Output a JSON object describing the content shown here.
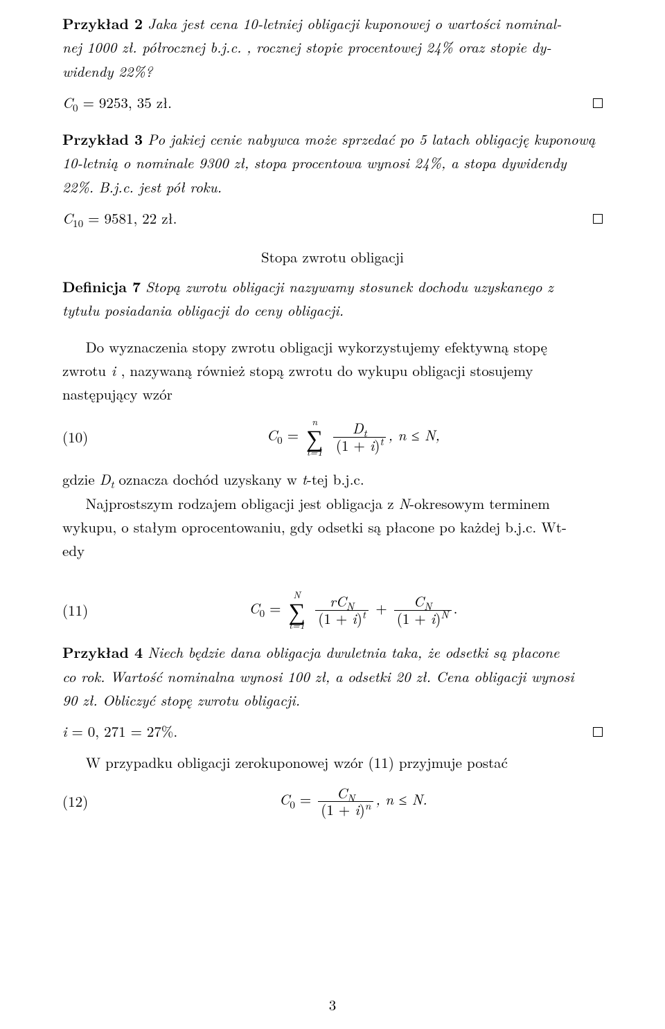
{
  "ex2": {
    "label": "Przykład 2",
    "text_a": "Jaka jest cena 10-letniej obligacji kuponowej o wartości nominal-",
    "text_b": "nej 1000 zł. półrocznej b.j.c. , rocznej stopie procentowej 24% oraz stopie dy-",
    "text_c": "widendy 22%?",
    "result": "C₀ = 9253, 35 zł."
  },
  "ex3": {
    "label": "Przykład 3",
    "text_a": "Po jakiej cenie nabywca może sprzedać po 5 latach obligację kuponową",
    "text_b": "10-letnią o nominale 9300 zł, stopa procentowa wynosi 24%, a stopa dywidendy",
    "text_c": "22%. B.j.c. jest pół roku.",
    "result": "C₁₀ = 9581, 22 zł."
  },
  "section_title": "Stopa zwrotu obligacji",
  "def7": {
    "label": "Definicja 7",
    "text_a": "Stopą zwrotu obligacji nazywamy stosunek dochodu uzyskanego z",
    "text_b": "tytułu posiadania obligacji do ceny obligacji."
  },
  "body1_a": "Do wyznaczenia stopy zwrotu obligacji wykorzystujemy efektywną stopę",
  "body1_b": "zwrotu",
  "body1_i": " i ",
  "body1_c": ", nazywaną również stopą zwrotu do wykupu obligacji stosujemy",
  "body1_d": "następujący wzór",
  "eq10": {
    "num": "(10)",
    "lhs": "C",
    "lhs_sub": "0",
    "eq": " = ",
    "sum_top": "n",
    "sum_bot": "t=1",
    "frac_num": "D",
    "frac_num_sub": "t",
    "frac_den_a": "(1 + ",
    "frac_den_i": "i",
    "frac_den_b": ")",
    "frac_den_sup": "t",
    "tail": ",   n ≤ N,"
  },
  "body2_a": "gdzie ",
  "body2_dt": "D",
  "body2_dt_sub": "t",
  "body2_b": " oznacza dochód uzyskany w ",
  "body2_t": "t",
  "body2_c": "-tej b.j.c.",
  "body3_a": "Najprostszym rodzajem obligacji jest obligacja z ",
  "body3_N": "N",
  "body3_b": "-okresowym terminem",
  "body3_c": "wykupu, o stałym oprocentowaniu, gdy odsetki są płacone po każdej b.j.c. Wt-",
  "body3_d": "edy",
  "eq11": {
    "num": "(11)",
    "sum_top": "N",
    "sum_bot": "t=1",
    "f1_num_a": "rC",
    "f1_num_sub": "N",
    "f1_den_a": "(1 + ",
    "f1_den_i": "i",
    "f1_den_b": ")",
    "f1_den_sup": "t",
    "plus": " + ",
    "f2_num_a": "C",
    "f2_num_sub": "N",
    "f2_den_a": "(1 + ",
    "f2_den_i": "i",
    "f2_den_b": ")",
    "f2_den_sup": "N",
    "tail": "."
  },
  "ex4": {
    "label": "Przykład 4",
    "text_a": "Niech będzie dana obligacja dwuletnia taka, że odsetki są płacone",
    "text_b": "co rok. Wartość nominalna wynosi 100 zł, a odsetki 20 zł. Cena obligacji wynosi",
    "text_c": "90 zł. Obliczyć stopę zwrotu obligacji.",
    "result": "i = 0, 271 = 27%."
  },
  "body4": "W przypadku obligacji zerokuponowej wzór (11) przyjmuje postać",
  "eq12": {
    "num": "(12)",
    "f_num_a": "C",
    "f_num_sub": "N",
    "f_den_a": "(1 + ",
    "f_den_i": "i",
    "f_den_b": ")",
    "f_den_sup": "n",
    "tail": ",   n ≤ N."
  },
  "page_number": "3"
}
